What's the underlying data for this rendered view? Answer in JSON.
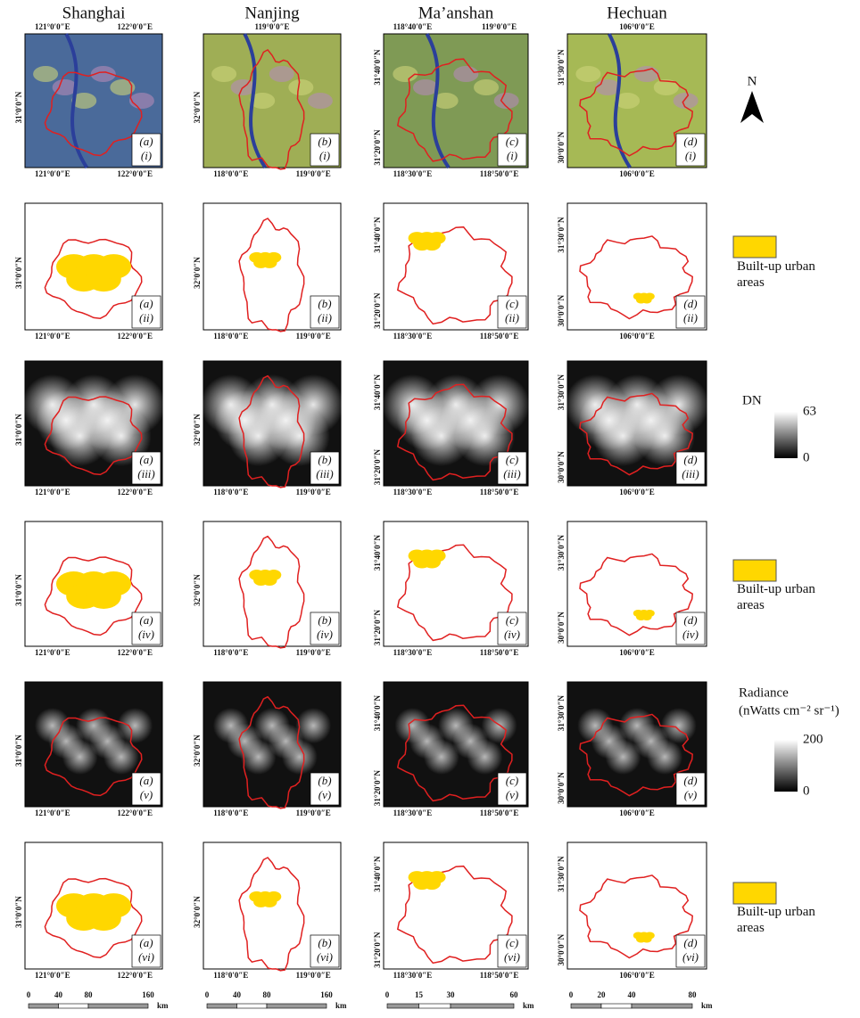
{
  "columns": [
    {
      "name": "Shanghai",
      "lon_top": [
        "121°0′0″E",
        "122°0′0″E"
      ],
      "lon_bottom": [
        "121°0′0″E",
        "122°0′0″E"
      ],
      "lat": [
        "31°0′0″N"
      ],
      "scale": [
        0,
        40,
        80,
        160
      ]
    },
    {
      "name": "Nanjing",
      "lon_top": [
        "119°0′0″E"
      ],
      "lon_bottom": [
        "118°0′0″E",
        "119°0′0″E"
      ],
      "lat": [
        "32°0′0″N"
      ],
      "scale": [
        0,
        40,
        80,
        160
      ]
    },
    {
      "name": "Ma’anshan",
      "lon_top": [
        "118°40′0″E",
        "119°0′0″E"
      ],
      "lon_bottom": [
        "118°30′0″E",
        "118°50′0″E"
      ],
      "lat": [
        "31°40′0″N",
        "31°20′0″N"
      ],
      "scale": [
        0,
        15,
        30,
        60
      ]
    },
    {
      "name": "Hechuan",
      "lon_top": [
        "106°0′0″E"
      ],
      "lon_bottom": [
        "106°0′0″E"
      ],
      "lat": [
        "31°30′0″N",
        "30°0′0″N"
      ],
      "scale": [
        0,
        20,
        40,
        80
      ]
    }
  ],
  "panel_letters": [
    "(a)",
    "(b)",
    "(c)",
    "(d)"
  ],
  "row_numerals": [
    "(i)",
    "(ii)",
    "(iii)",
    "(iv)",
    "(v)",
    "(vi)"
  ],
  "scale_unit": "km",
  "north": "N",
  "legends": {
    "built_up": "Built-up urban areas",
    "dn": {
      "title": "DN",
      "max": 63,
      "min": 0
    },
    "radiance": {
      "title": "Radiance",
      "unit": "(nWatts cm⁻² sr⁻¹)",
      "max": 200,
      "min": 0
    }
  }
}
